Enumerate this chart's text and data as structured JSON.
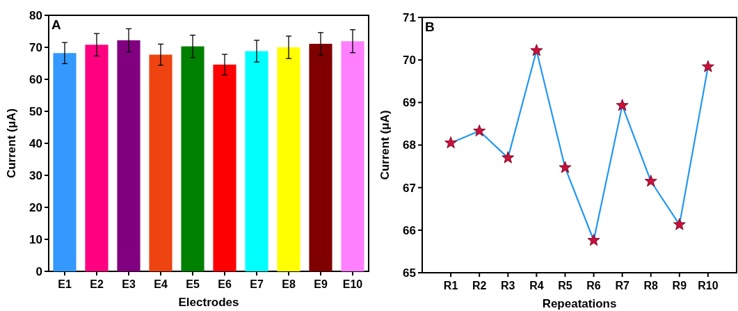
{
  "chart_data": [
    {
      "type": "bar",
      "xlabel": "Electrodes",
      "ylabel": "Current (μA)",
      "annotations": [
        "A"
      ],
      "categories": [
        "E1",
        "E2",
        "E3",
        "E4",
        "E5",
        "E6",
        "E7",
        "E8",
        "E9",
        "E10"
      ],
      "values": [
        68.2,
        70.8,
        72.2,
        67.7,
        70.3,
        64.6,
        68.8,
        70.0,
        71.1,
        71.9
      ],
      "errors": [
        3.3,
        3.5,
        3.6,
        3.3,
        3.5,
        3.2,
        3.4,
        3.5,
        3.5,
        3.6
      ],
      "colors": [
        "#3399ff",
        "#ff0080",
        "#800080",
        "#ee4411",
        "#008000",
        "#ff0000",
        "#00ffff",
        "#ffff00",
        "#800000",
        "#ff80ff"
      ],
      "ylim": [
        0,
        80
      ],
      "yticks": [
        0,
        10,
        20,
        30,
        40,
        50,
        60,
        70,
        80
      ]
    },
    {
      "type": "line",
      "xlabel": "Repeatations",
      "ylabel": "Current (μA)",
      "annotations": [
        "B"
      ],
      "categories": [
        "R1",
        "R2",
        "R3",
        "R4",
        "R5",
        "R6",
        "R7",
        "R8",
        "R9",
        "R10"
      ],
      "series": [
        {
          "color": "#2196f3",
          "colors": [
            "#c8103c",
            "#c8103c",
            "#c8103c",
            "#c8103c",
            "#c8103c",
            "#c8103c",
            "#c8103c",
            "#c8103c",
            "#c8103c",
            "#c8103c"
          ],
          "values": [
            68.05,
            68.33,
            67.7,
            70.22,
            67.47,
            65.76,
            68.93,
            67.15,
            66.13,
            69.84
          ]
        }
      ],
      "marker": "star",
      "line_style": "solid",
      "ylim": [
        65,
        71
      ],
      "yticks": [
        65,
        66,
        67,
        68,
        69,
        70,
        71
      ]
    }
  ]
}
